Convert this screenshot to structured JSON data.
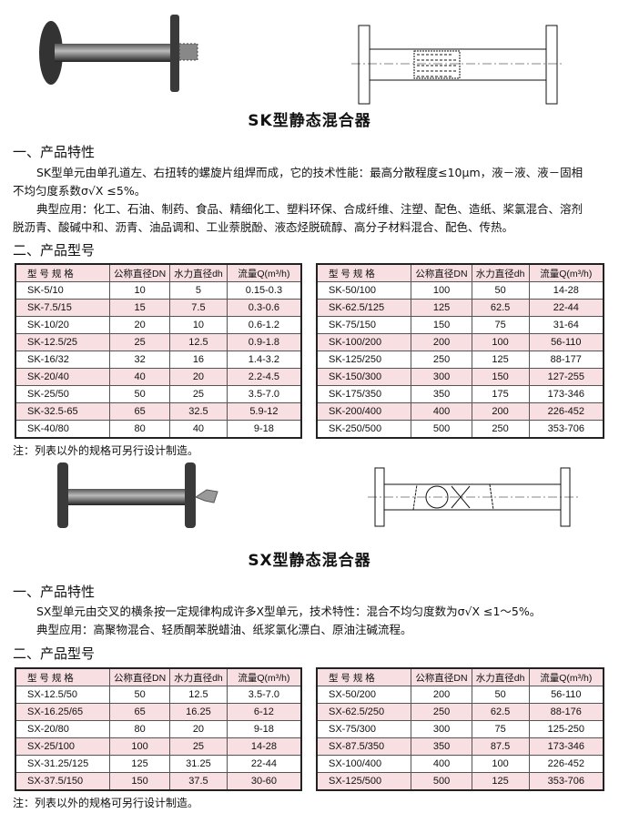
{
  "sk": {
    "title": "SK型静态混合器",
    "section1": "一、产品特性",
    "para1a": "SK型单元由单孔道左、右扭转的螺旋片组焊而成，它的技术性能：最高分散程度≤10μm，液－液、液－固相",
    "para1b": "不均匀度系数σ√X ≤5%。",
    "para2a": "典型应用：化工、石油、制药、食品、精细化工、塑料环保、合成纤维、注塑、配色、造纸、桨氯混合、溶剂",
    "para2b": "脱沥青、酸碱中和、沥青、油品调和、工业萘脱酚、液态烃脱硫醇、高分子材料混合、配色、传热。",
    "section2": "二、产品型号",
    "note": "注：列表以外的规格可另行设计制造。",
    "table_left": [
      [
        "SK-5/10",
        "10",
        "5",
        "0.15-0.3"
      ],
      [
        "SK-7.5/15",
        "15",
        "7.5",
        "0.3-0.6"
      ],
      [
        "SK-10/20",
        "20",
        "10",
        "0.6-1.2"
      ],
      [
        "SK-12.5/25",
        "25",
        "12.5",
        "0.9-1.8"
      ],
      [
        "SK-16/32",
        "32",
        "16",
        "1.4-3.2"
      ],
      [
        "SK-20/40",
        "40",
        "20",
        "2.2-4.5"
      ],
      [
        "SK-25/50",
        "50",
        "25",
        "3.5-7.0"
      ],
      [
        "SK-32.5-65",
        "65",
        "32.5",
        "5.9-12"
      ],
      [
        "SK-40/80",
        "80",
        "40",
        "9-18"
      ]
    ],
    "table_right": [
      [
        "SK-50/100",
        "100",
        "50",
        "14-28"
      ],
      [
        "SK-62.5/125",
        "125",
        "62.5",
        "22-44"
      ],
      [
        "SK-75/150",
        "150",
        "75",
        "31-64"
      ],
      [
        "SK-100/200",
        "200",
        "100",
        "56-110"
      ],
      [
        "SK-125/250",
        "250",
        "125",
        "88-177"
      ],
      [
        "SK-150/300",
        "300",
        "150",
        "127-255"
      ],
      [
        "SK-175/350",
        "350",
        "175",
        "173-346"
      ],
      [
        "SK-200/400",
        "400",
        "200",
        "226-452"
      ],
      [
        "SK-250/500",
        "500",
        "250",
        "353-706"
      ]
    ]
  },
  "sx": {
    "title": "SX型静态混合器",
    "section1": "一、产品特性",
    "para1": "SX型单元由交叉的横条按一定规律构成许多X型单元，技术特性：混合不均匀度数为σ√X ≤1～5%。",
    "para2": "典型应用：高聚物混合、轻质酮苯脱蜡油、纸浆氯化漂白、原油注碱流程。",
    "section2": "二、产品型号",
    "note": "注：列表以外的规格可另行设计制造。",
    "table_left": [
      [
        "SX-12.5/50",
        "50",
        "12.5",
        "3.5-7.0"
      ],
      [
        "SX-16.25/65",
        "65",
        "16.25",
        "6-12"
      ],
      [
        "SX-20/80",
        "80",
        "20",
        "9-18"
      ],
      [
        "SX-25/100",
        "100",
        "25",
        "14-28"
      ],
      [
        "SX-31.25/125",
        "125",
        "31.25",
        "22-44"
      ],
      [
        "SX-37.5/150",
        "150",
        "37.5",
        "30-60"
      ]
    ],
    "table_right": [
      [
        "SX-50/200",
        "200",
        "50",
        "56-110"
      ],
      [
        "SX-62.5/250",
        "250",
        "62.5",
        "88-176"
      ],
      [
        "SX-75/300",
        "300",
        "75",
        "125-250"
      ],
      [
        "SX-87.5/350",
        "350",
        "87.5",
        "173-346"
      ],
      [
        "SX-100/400",
        "400",
        "100",
        "226-452"
      ],
      [
        "SX-125/500",
        "500",
        "125",
        "353-706"
      ]
    ]
  },
  "headers": [
    "型 号 规 格",
    "公称直径DN",
    "水力直径dh",
    "流量Q(m³/h)"
  ],
  "colors": {
    "row_highlight": "#f7dfe2",
    "border": "#222222"
  }
}
